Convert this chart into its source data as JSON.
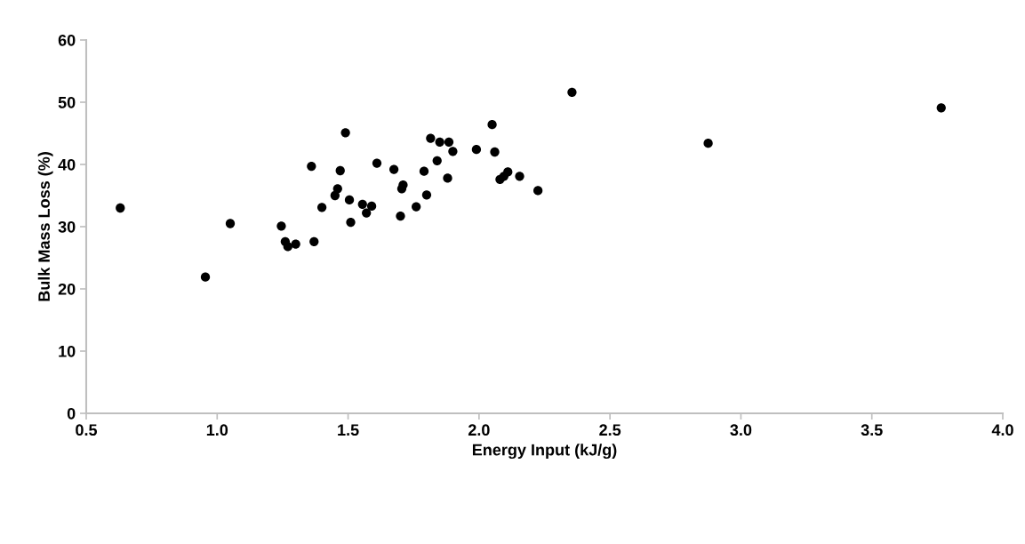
{
  "chart_data": {
    "type": "scatter",
    "xlabel": "Energy Input (kJ/g)",
    "ylabel": "Bulk Mass Loss (%)",
    "xlim": [
      0.5,
      4.0
    ],
    "ylim": [
      0,
      60
    ],
    "xticks": [
      {
        "value": 0.5,
        "label": "0.5"
      },
      {
        "value": 1.0,
        "label": "1.0"
      },
      {
        "value": 1.5,
        "label": "1.5"
      },
      {
        "value": 2.0,
        "label": "2.0"
      },
      {
        "value": 2.5,
        "label": "2.5"
      },
      {
        "value": 3.0,
        "label": "3.0"
      },
      {
        "value": 3.5,
        "label": "3.5"
      },
      {
        "value": 4.0,
        "label": "4.0"
      }
    ],
    "yticks": [
      0,
      10,
      20,
      30,
      40,
      50,
      60
    ],
    "grid": false,
    "marker": "circle",
    "series": [
      {
        "color": "#000000",
        "x": [
          0.63,
          0.955,
          1.05,
          1.245,
          1.26,
          1.27,
          1.3,
          1.37,
          1.36,
          1.4,
          1.45,
          1.46,
          1.47,
          1.49,
          1.505,
          1.51,
          1.555,
          1.57,
          1.59,
          1.61,
          1.675,
          1.7,
          1.705,
          1.71,
          1.76,
          1.79,
          1.8,
          1.815,
          1.84,
          1.85,
          1.88,
          1.885,
          1.9,
          1.99,
          2.05,
          2.06,
          2.08,
          2.095,
          2.11,
          2.155,
          2.225,
          2.355,
          2.875,
          3.765
        ],
        "values": [
          33.0,
          21.9,
          30.5,
          30.1,
          27.6,
          26.8,
          27.2,
          27.6,
          39.7,
          33.1,
          35.0,
          36.1,
          39.0,
          45.1,
          34.3,
          30.7,
          33.6,
          32.2,
          33.3,
          40.2,
          39.2,
          31.7,
          36.1,
          36.7,
          33.2,
          38.9,
          35.1,
          44.2,
          40.6,
          43.6,
          37.8,
          43.6,
          42.1,
          42.4,
          46.4,
          42.0,
          37.6,
          38.1,
          38.8,
          38.1,
          35.8,
          51.6,
          43.4,
          49.1
        ]
      }
    ]
  }
}
